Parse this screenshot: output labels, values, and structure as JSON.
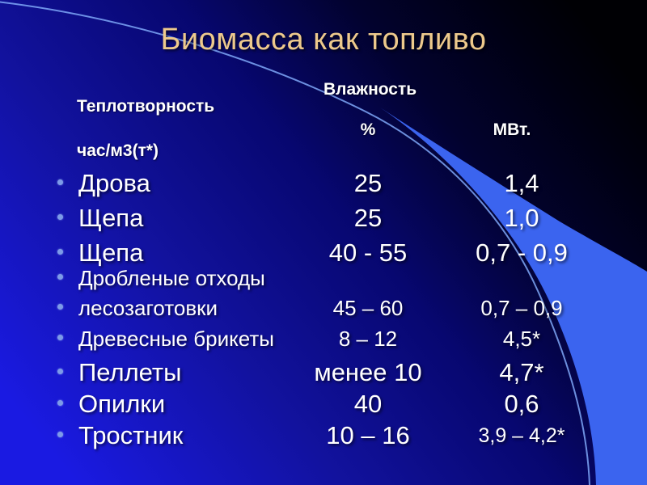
{
  "title": "Биомасса как топливо",
  "table": {
    "header": {
      "moisture_title": "Влажность",
      "heating_title": "Теплотворность",
      "moisture_unit": "%",
      "heating_unit_line1": "МВт.",
      "heating_unit_line2": "час/м3(т*)"
    },
    "rows": [
      {
        "label": "Дрова",
        "moisture": "25",
        "heating": "1,4",
        "variant": "lg",
        "heating_variant": ""
      },
      {
        "label": "Щепа",
        "moisture": "25",
        "heating": "1,0",
        "variant": "lg",
        "heating_variant": ""
      },
      {
        "label": "Щепа",
        "moisture": "40 - 55",
        "heating": "0,7 - 0,9",
        "variant": "lg",
        "heating_variant": ""
      },
      {
        "label": "Дробленые отходы",
        "moisture": "",
        "heating": "",
        "variant": "sm",
        "heating_variant": ""
      },
      {
        "label": "лесозаготовки",
        "moisture": "45 – 60",
        "heating": "0,7 – 0,9",
        "variant": "sm",
        "heating_variant": ""
      },
      {
        "label": "Древесные брикеты",
        "moisture": "8 – 12",
        "heating": "4,5*",
        "variant": "sm",
        "heating_variant": ""
      },
      {
        "label": "Пеллеты",
        "moisture": "менее 10",
        "heating": "4,7*",
        "variant": "lg",
        "heating_variant": ""
      },
      {
        "label": "Опилки",
        "moisture": "40",
        "heating": "0,6",
        "variant": "lg",
        "heating_variant": ""
      },
      {
        "label": "Тростник",
        "moisture": "10 – 16",
        "heating": "3,9 – 4,2*",
        "variant": "lg",
        "heating_variant": "sm"
      }
    ]
  },
  "colors": {
    "title_gold": "#EDC98C",
    "text_white": "#FFFFFF",
    "bullet_blue": "#7D9BE8",
    "crescent_blue": "#3B64EF",
    "arc_line_blue": "#7FA8F8",
    "background_left_blue": "#1A1AE2",
    "background_right_dark": "#000008"
  }
}
